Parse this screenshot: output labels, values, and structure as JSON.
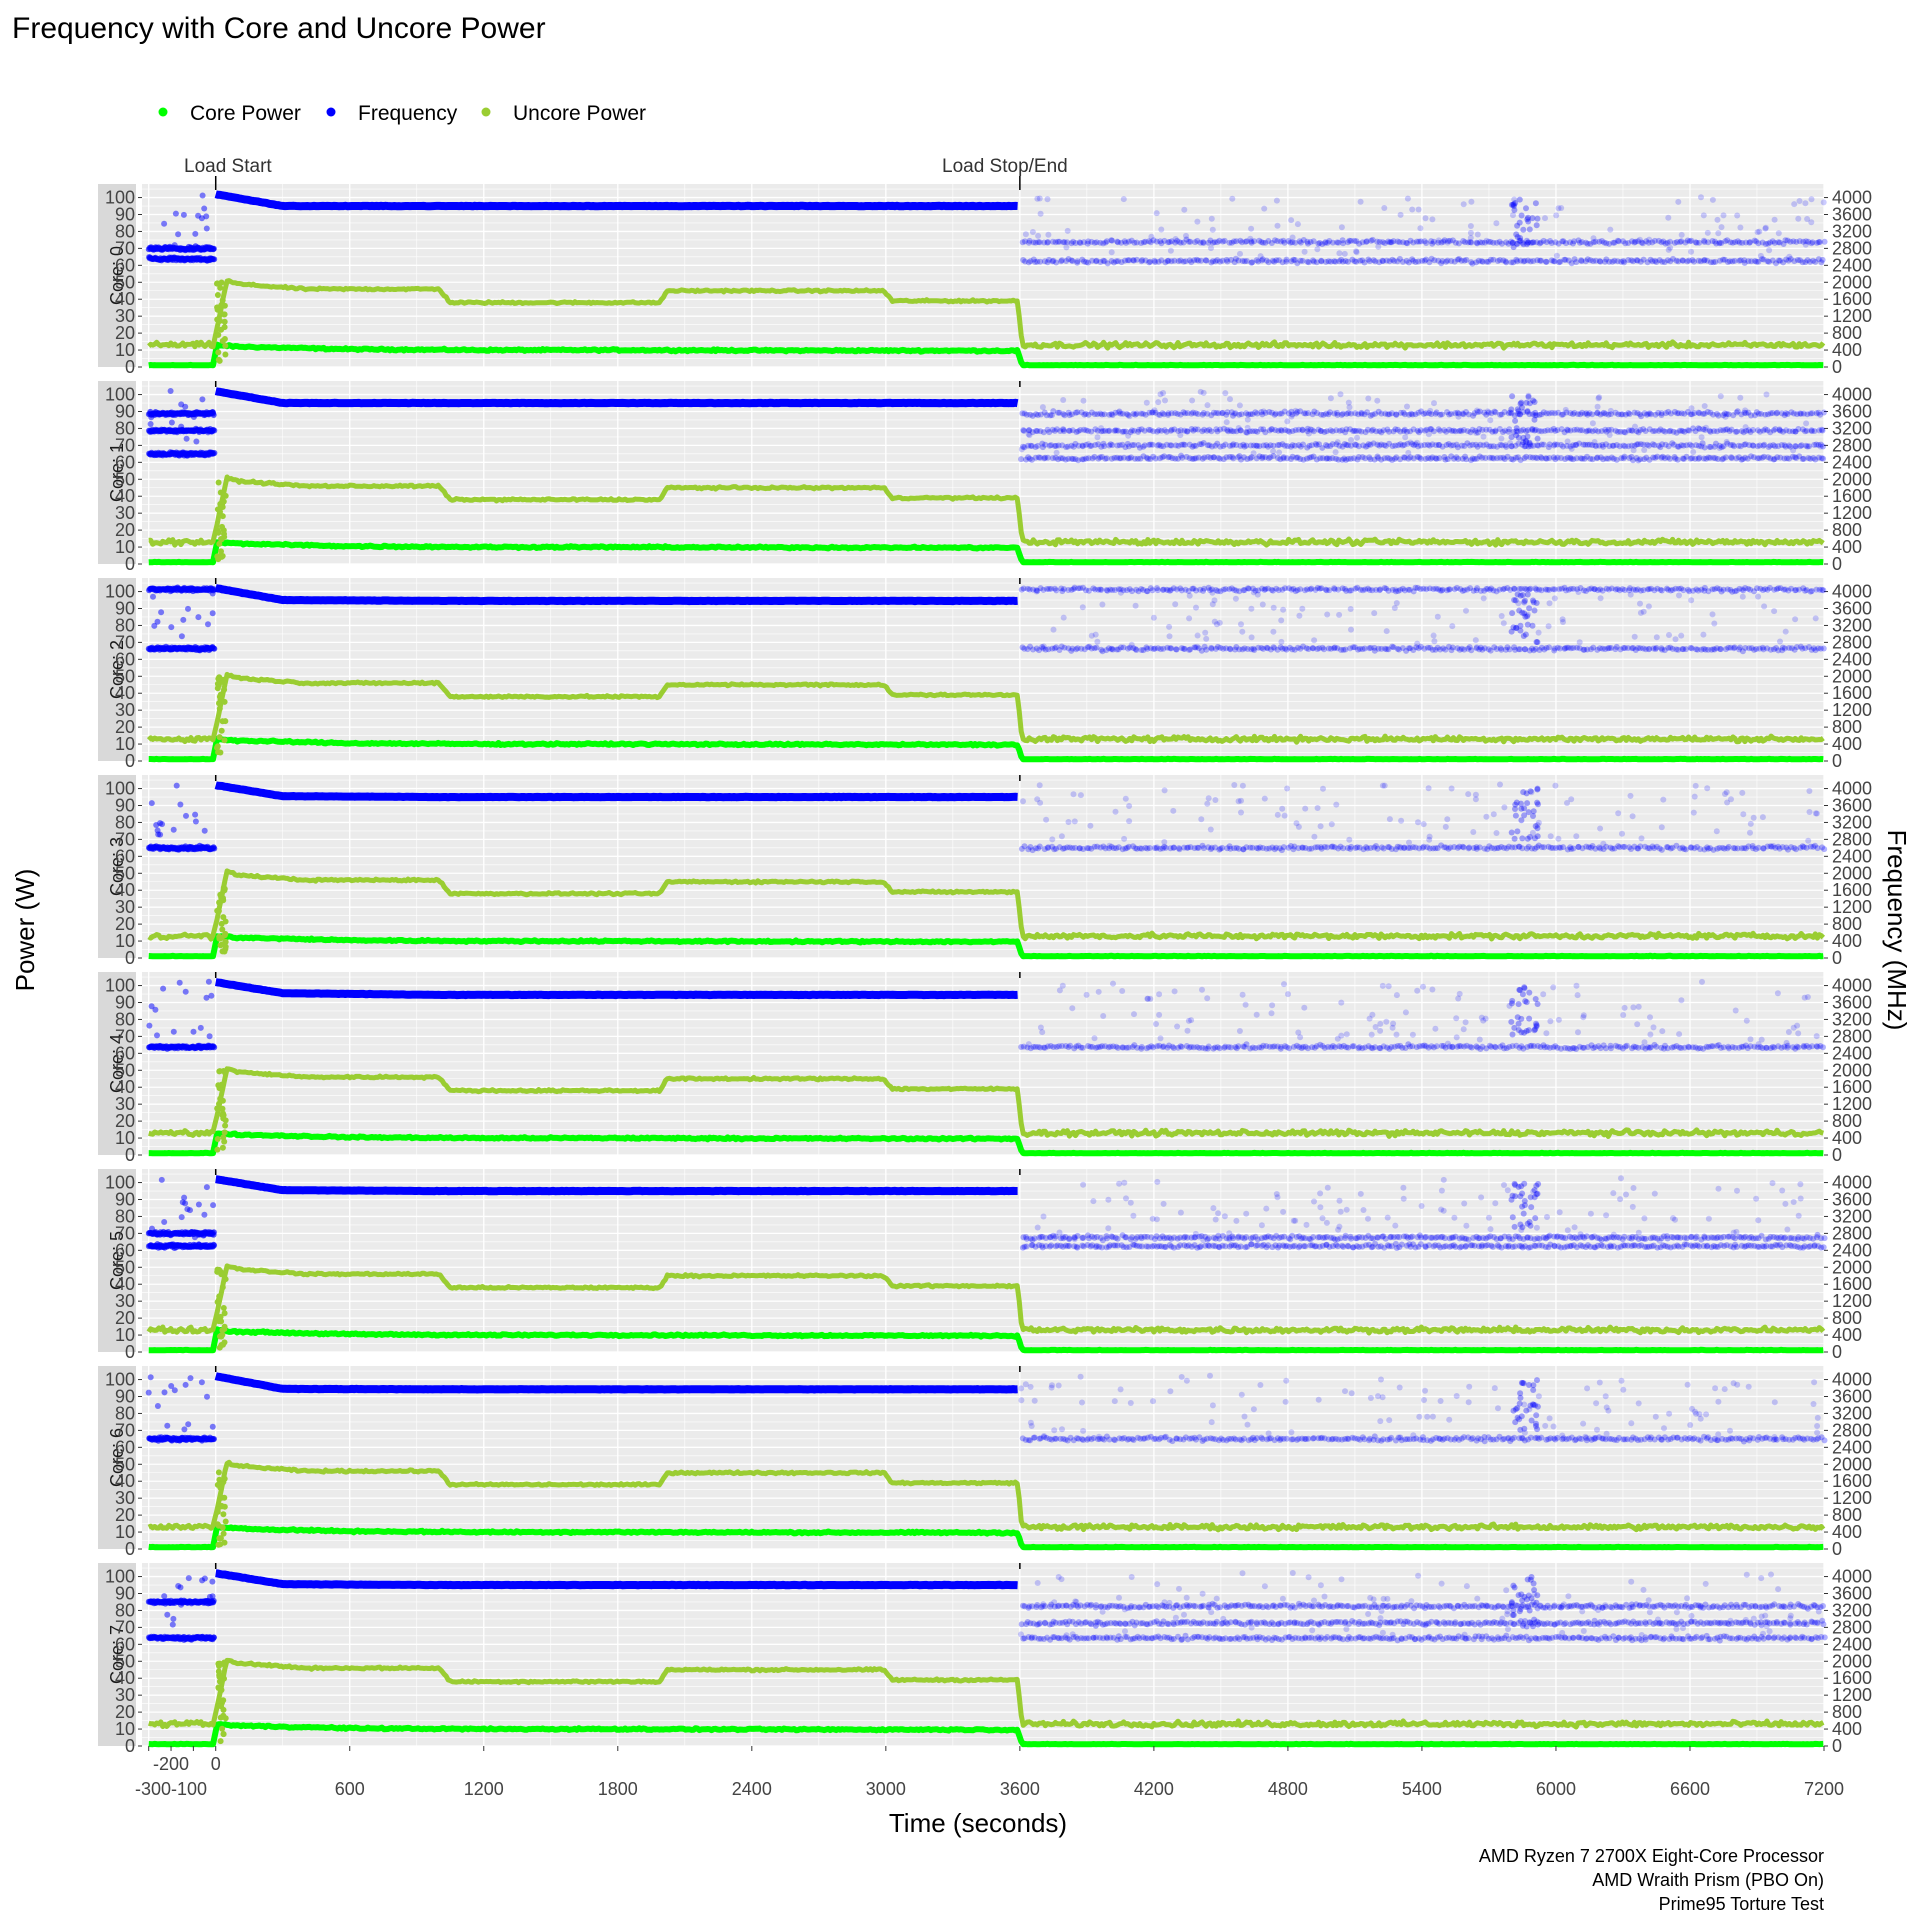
{
  "chart_data": {
    "type": "scatter",
    "title": "Frequency with Core and Uncore Power",
    "xlabel": "Time (seconds)",
    "ylabel": "Power (W)",
    "y2label": "Frequency (MHz)",
    "xlim": [
      -330,
      7200
    ],
    "ylim": [
      0,
      108
    ],
    "y2lim": [
      0,
      4320
    ],
    "x_ticks": [
      -300,
      -200,
      -100,
      0,
      600,
      1200,
      1800,
      2400,
      3000,
      3600,
      4200,
      4800,
      5400,
      6000,
      6600,
      7200
    ],
    "x_tick_labels_row1": [
      "-200",
      "0"
    ],
    "x_tick_labels_row2": [
      "-300-100",
      "600",
      "1200",
      "1800",
      "2400",
      "3000",
      "3600",
      "4200",
      "4800",
      "5400",
      "6000",
      "6600",
      "7200"
    ],
    "y_ticks": [
      0,
      10,
      20,
      30,
      40,
      50,
      60,
      70,
      80,
      90,
      100
    ],
    "y2_ticks": [
      0,
      400,
      800,
      1200,
      1600,
      2000,
      2400,
      2800,
      3200,
      3600,
      4000
    ],
    "legend": {
      "position": "top-left",
      "items": [
        {
          "label": "Core Power",
          "color": "#00ff00"
        },
        {
          "label": "Frequency",
          "color": "#0000ff"
        },
        {
          "label": "Uncore Power",
          "color": "#9acd32"
        }
      ]
    },
    "annotations": [
      {
        "label": "Load Start",
        "x": 0
      },
      {
        "label": "Load Stop/End",
        "x": 3600
      }
    ],
    "caption": [
      "AMD Ryzen 7 2700X Eight-Core Processor",
      "AMD Wraith Prism (PBO On)",
      "Prime95 Torture Test"
    ],
    "grid": true,
    "facets": [
      {
        "label": "Core: 0",
        "idle_pre_mhz": [
          2550,
          2800
        ],
        "post_mhz": [
          2500,
          2950
        ],
        "load_mhz": [
          4080,
          3800,
          3800,
          3800
        ]
      },
      {
        "label": "Core: 1",
        "idle_pre_mhz": [
          2600,
          3150,
          3550
        ],
        "post_mhz": [
          2500,
          2800,
          3150,
          3550
        ],
        "load_mhz": [
          4080,
          3800,
          3800,
          3800
        ]
      },
      {
        "label": "Core: 2",
        "idle_pre_mhz": [
          2650,
          4050
        ],
        "post_mhz": [
          2650,
          4050
        ],
        "load_mhz": [
          4080,
          3800,
          3780,
          3780
        ]
      },
      {
        "label": "Core: 3",
        "idle_pre_mhz": [
          2600
        ],
        "post_mhz": [
          2600
        ],
        "load_mhz": [
          4080,
          3820,
          3800,
          3800
        ]
      },
      {
        "label": "Core: 4",
        "idle_pre_mhz": [
          2550
        ],
        "post_mhz": [
          2550
        ],
        "load_mhz": [
          4080,
          3820,
          3780,
          3780
        ]
      },
      {
        "label": "Core: 5",
        "idle_pre_mhz": [
          2500,
          2800
        ],
        "post_mhz": [
          2500,
          2700
        ],
        "load_mhz": [
          4080,
          3820,
          3800,
          3800
        ]
      },
      {
        "label": "Core: 6",
        "idle_pre_mhz": [
          2600
        ],
        "post_mhz": [
          2600
        ],
        "load_mhz": [
          4080,
          3780,
          3770,
          3770
        ]
      },
      {
        "label": "Core: 7",
        "idle_pre_mhz": [
          2550,
          3400
        ],
        "post_mhz": [
          2550,
          2900,
          3300
        ],
        "load_mhz": [
          4080,
          3820,
          3800,
          3800
        ]
      }
    ],
    "series": [
      {
        "name": "Core Power",
        "x": [
          -300,
          -10,
          0,
          100,
          600,
          1200,
          1800,
          2400,
          3000,
          3590,
          3610,
          7200
        ],
        "values": [
          1,
          1,
          13,
          12,
          10.5,
          10,
          10,
          9.8,
          9.7,
          9.6,
          1,
          1
        ]
      },
      {
        "name": "Uncore Power",
        "x": [
          -300,
          -10,
          50,
          100,
          400,
          1000,
          1050,
          1990,
          2020,
          2990,
          3030,
          3590,
          3610,
          7200
        ],
        "values": [
          13,
          13,
          51,
          49,
          46,
          46,
          38,
          38,
          45,
          45,
          39,
          39,
          13,
          13
        ]
      },
      {
        "name": "Frequency",
        "x": [
          0,
          300,
          1000,
          1200,
          1800,
          3590
        ],
        "values": [
          4080,
          3920,
          3800,
          3800,
          3790,
          3790
        ]
      }
    ]
  }
}
